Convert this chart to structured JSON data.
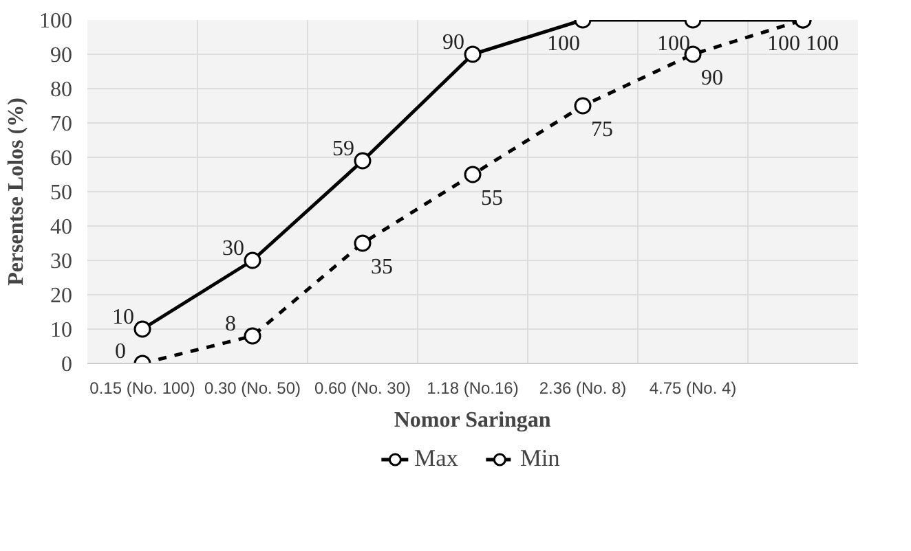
{
  "chart_data": {
    "type": "line",
    "xlabel": "Nomor Saringan",
    "ylabel": "Persentse Lolos (%)",
    "categories": [
      "0.15 (No. 100)",
      "0.30 (No. 50)",
      "0.60 (No. 30)",
      "1.18 (No.16)",
      "2.36 (No. 8)",
      "4.75 (No. 4)",
      null
    ],
    "series": [
      {
        "name": "Max",
        "color": "#000000",
        "line_style": "solid",
        "values": [
          10,
          30,
          59,
          90,
          100,
          100,
          100
        ]
      },
      {
        "name": "Min",
        "color": "#000000",
        "line_style": "dashed",
        "values": [
          0,
          8,
          35,
          55,
          75,
          90,
          100
        ]
      }
    ],
    "ylim": [
      0,
      100
    ],
    "yticks": [
      0,
      10,
      20,
      30,
      40,
      50,
      60,
      70,
      80,
      90,
      100
    ],
    "grid": true,
    "legend": "bottom",
    "marker": "circle",
    "data_labels": true
  }
}
